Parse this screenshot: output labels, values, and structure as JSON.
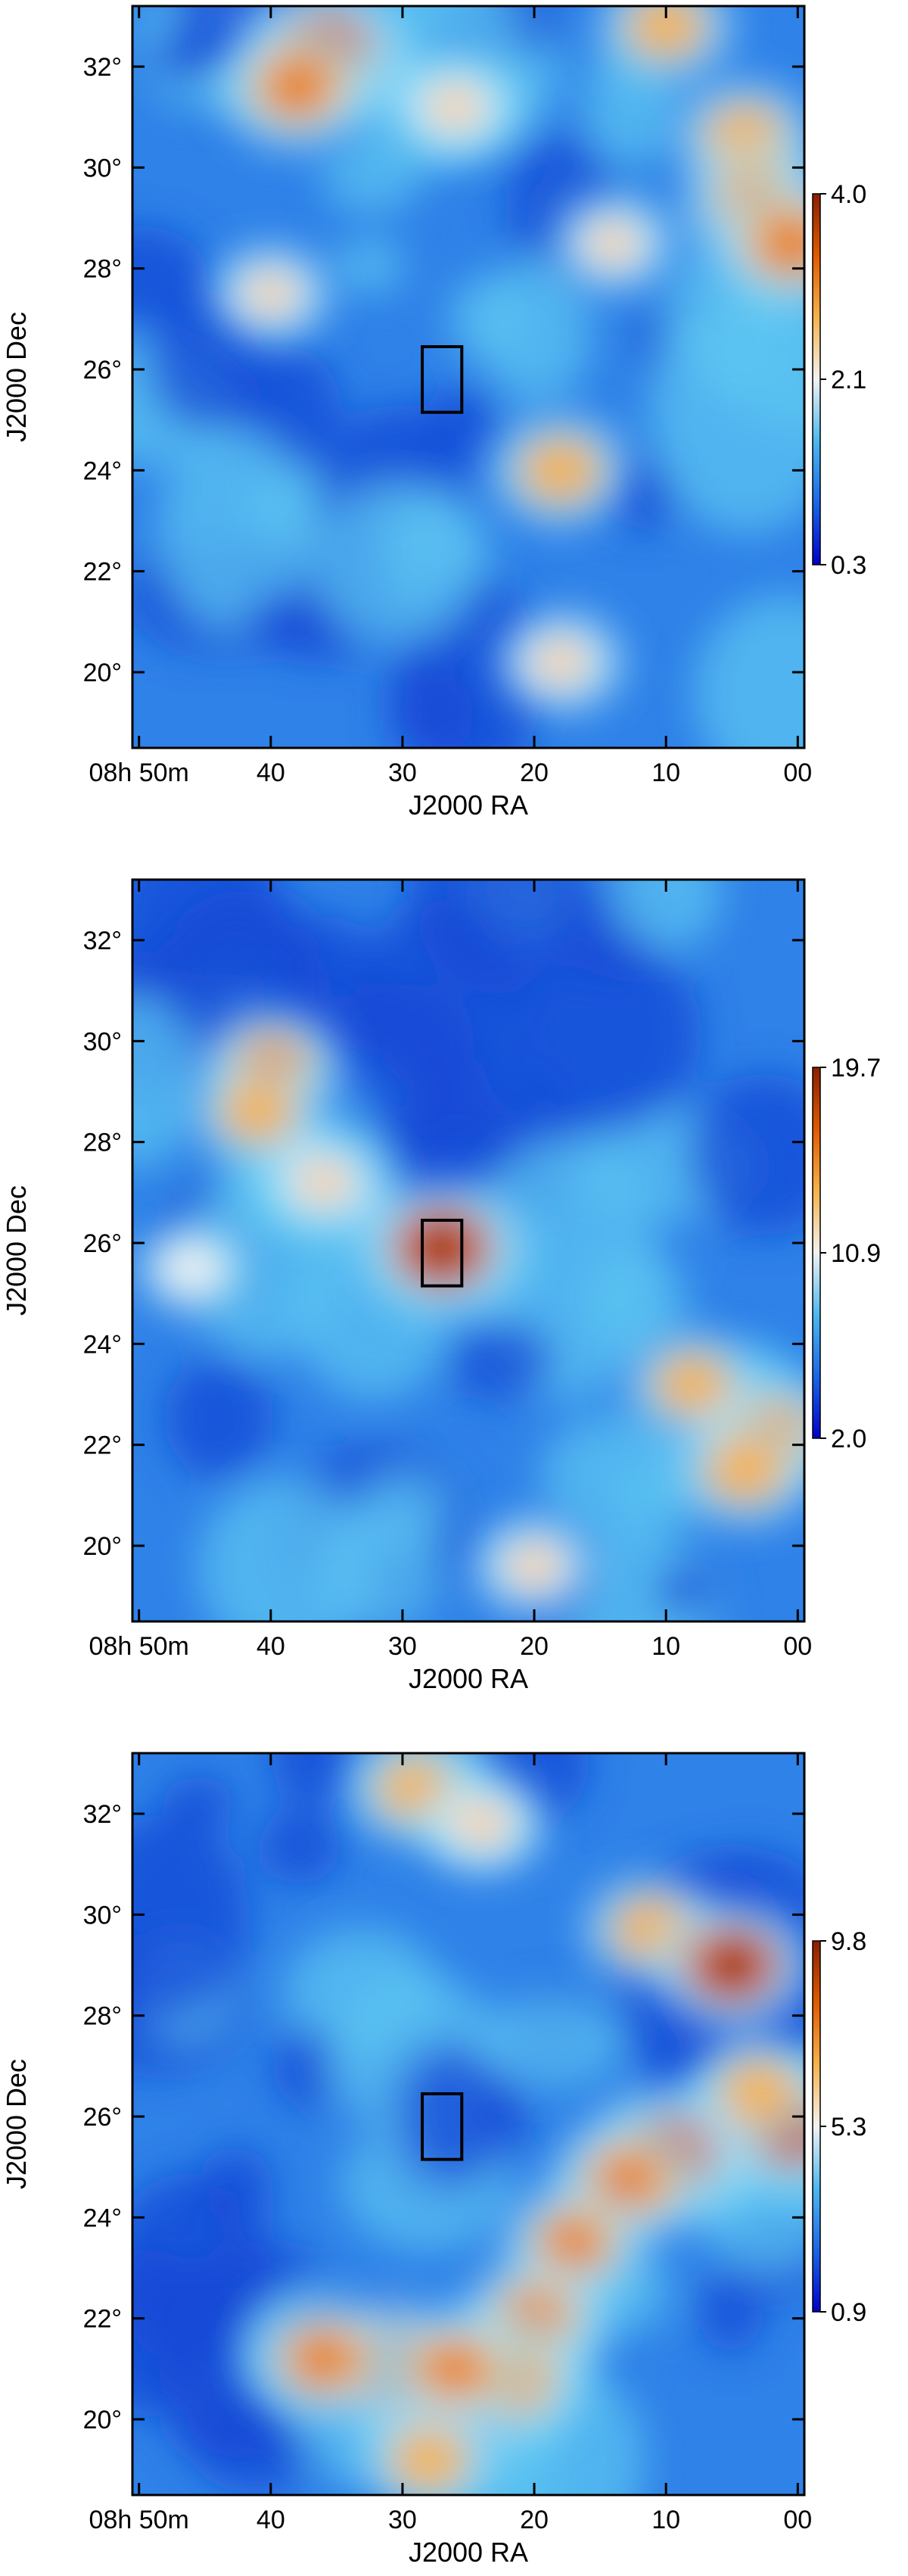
{
  "chart_data": [
    {
      "type": "heatmap",
      "xlabel": "J2000 RA",
      "ylabel": "J2000 Dec",
      "xlim": [
        50.5,
        -0.5
      ],
      "ylim": [
        18.5,
        33.2
      ],
      "x_ticks": [
        "08h 50m",
        "40",
        "30",
        "20",
        "10",
        "00"
      ],
      "y_ticks": [
        "20°",
        "22°",
        "24°",
        "26°",
        "28°",
        "30°",
        "32°"
      ],
      "colorbar_ticks": [
        "4.0",
        "2.1",
        "0.3"
      ],
      "colorbar_range": [
        0.3,
        4.0
      ],
      "colormap": [
        "#0000cc",
        "#1a66e6",
        "#4cb8f0",
        "#f2f2f2",
        "#f7b24c",
        "#e05a00",
        "#8a1f00"
      ],
      "box": {
        "ra_range": [
          25.5,
          28.5
        ],
        "dec_range": [
          25.3,
          26.3
        ]
      },
      "blobs": [
        {
          "ra": 36,
          "dec": 32.3,
          "level": 1.0
        },
        {
          "ra": 38,
          "dec": 31.6,
          "level": 0.85
        },
        {
          "ra": 26,
          "dec": 31.2,
          "level": 0.45
        },
        {
          "ra": 10,
          "dec": 32.8,
          "level": 0.55
        },
        {
          "ra": 4,
          "dec": 30.6,
          "level": 0.6
        },
        {
          "ra": 3,
          "dec": 29.3,
          "level": 0.75
        },
        {
          "ra": 0.5,
          "dec": 28.5,
          "level": 0.85
        },
        {
          "ra": 18,
          "dec": 24.0,
          "level": 0.6
        },
        {
          "ra": 18,
          "dec": 20.2,
          "level": 0.45
        },
        {
          "ra": 40,
          "dec": 27.5,
          "level": 0.35
        },
        {
          "ra": 14,
          "dec": 28.5,
          "level": 0.35
        }
      ]
    },
    {
      "type": "heatmap",
      "xlabel": "J2000 RA",
      "ylabel": "J2000 Dec",
      "xlim": [
        50.5,
        -0.5
      ],
      "ylim": [
        18.5,
        33.2
      ],
      "x_ticks": [
        "08h 50m",
        "40",
        "30",
        "20",
        "10",
        "00"
      ],
      "y_ticks": [
        "20°",
        "22°",
        "24°",
        "26°",
        "28°",
        "30°",
        "32°"
      ],
      "colorbar_ticks": [
        "19.7",
        "10.9",
        "2.0"
      ],
      "colorbar_range": [
        2.0,
        19.7
      ],
      "colormap": [
        "#0000cc",
        "#1a66e6",
        "#4cb8f0",
        "#f2f2f2",
        "#f7b24c",
        "#e05a00",
        "#8a1f00"
      ],
      "box": {
        "ra_range": [
          25.5,
          28.5
        ],
        "dec_range": [
          25.3,
          26.3
        ]
      },
      "blobs": [
        {
          "ra": 27,
          "dec": 25.9,
          "level": 1.0
        },
        {
          "ra": 40,
          "dec": 29.5,
          "level": 0.65
        },
        {
          "ra": 41,
          "dec": 28.6,
          "level": 0.5
        },
        {
          "ra": 36,
          "dec": 27.2,
          "level": 0.45
        },
        {
          "ra": 2,
          "dec": 22.2,
          "level": 0.75
        },
        {
          "ra": 8,
          "dec": 23.2,
          "level": 0.5
        },
        {
          "ra": 4,
          "dec": 21.5,
          "level": 0.6
        },
        {
          "ra": 20,
          "dec": 19.6,
          "level": 0.4
        },
        {
          "ra": 46,
          "dec": 25.5,
          "level": 0.25
        }
      ]
    },
    {
      "type": "heatmap",
      "xlabel": "J2000 RA",
      "ylabel": "J2000 Dec",
      "xlim": [
        50.5,
        -0.5
      ],
      "ylim": [
        18.5,
        33.2
      ],
      "x_ticks": [
        "08h 50m",
        "40",
        "30",
        "20",
        "10",
        "00"
      ],
      "y_ticks": [
        "20°",
        "22°",
        "24°",
        "26°",
        "28°",
        "30°",
        "32°"
      ],
      "colorbar_ticks": [
        "9.8",
        "5.3",
        "0.9"
      ],
      "colorbar_range": [
        0.9,
        9.8
      ],
      "colormap": [
        "#0000cc",
        "#1a66e6",
        "#4cb8f0",
        "#f2f2f2",
        "#f7b24c",
        "#e05a00",
        "#8a1f00"
      ],
      "box": {
        "ra_range": [
          25.5,
          28.5
        ],
        "dec_range": [
          25.3,
          26.3
        ]
      },
      "blobs": [
        {
          "ra": 29,
          "dec": 32.5,
          "level": 0.55
        },
        {
          "ra": 24,
          "dec": 31.8,
          "level": 0.45
        },
        {
          "ra": 11,
          "dec": 29.7,
          "level": 0.6
        },
        {
          "ra": 5,
          "dec": 29.0,
          "level": 0.9
        },
        {
          "ra": 10,
          "dec": 25.2,
          "level": 1.0
        },
        {
          "ra": 13,
          "dec": 24.7,
          "level": 0.8
        },
        {
          "ra": 17,
          "dec": 23.5,
          "level": 0.65
        },
        {
          "ra": 20,
          "dec": 22.0,
          "level": 0.7
        },
        {
          "ra": 22,
          "dec": 20.8,
          "level": 0.85
        },
        {
          "ra": 31,
          "dec": 21.1,
          "level": 0.9
        },
        {
          "ra": 36,
          "dec": 21.2,
          "level": 0.75
        },
        {
          "ra": 26,
          "dec": 21.0,
          "level": 0.7
        },
        {
          "ra": 0.5,
          "dec": 25.8,
          "level": 0.9
        },
        {
          "ra": 3,
          "dec": 26.5,
          "level": 0.55
        },
        {
          "ra": 28,
          "dec": 19.2,
          "level": 0.55
        }
      ]
    }
  ]
}
